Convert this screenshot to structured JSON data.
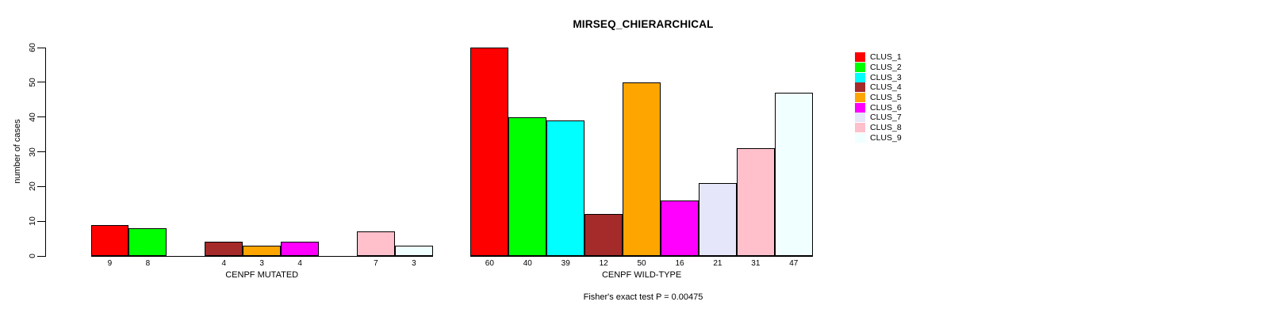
{
  "figure": {
    "title": "MIRSEQ_CHIERARCHICAL",
    "caption": "Fisher's exact test P = 0.00475"
  },
  "chart_data": {
    "type": "bar",
    "title": "MIRSEQ_CHIERARCHICAL",
    "xlabel": "",
    "ylabel": "number of cases",
    "ylim": [
      0,
      60
    ],
    "yticks": [
      0,
      10,
      20,
      30,
      40,
      50,
      60
    ],
    "grid": false,
    "bar_value_labels": true,
    "legend_position": "right",
    "annotation": "Fisher's exact test P = 0.00475",
    "categories": [
      "CENPF MUTATED",
      "CENPF WILD-TYPE"
    ],
    "series": [
      {
        "name": "CLUS_1",
        "color": "#FF0000",
        "values": [
          9,
          60
        ]
      },
      {
        "name": "CLUS_2",
        "color": "#00FF00",
        "values": [
          8,
          40
        ]
      },
      {
        "name": "CLUS_3",
        "color": "#00FFFF",
        "values": [
          0,
          39
        ]
      },
      {
        "name": "CLUS_4",
        "color": "#A52A2A",
        "values": [
          4,
          12
        ]
      },
      {
        "name": "CLUS_5",
        "color": "#FFA500",
        "values": [
          3,
          50
        ]
      },
      {
        "name": "CLUS_6",
        "color": "#FF00FF",
        "values": [
          4,
          16
        ]
      },
      {
        "name": "CLUS_7",
        "color": "#E6E6FA",
        "values": [
          0,
          21
        ]
      },
      {
        "name": "CLUS_8",
        "color": "#FFC0CB",
        "values": [
          7,
          31
        ]
      },
      {
        "name": "CLUS_9",
        "color": "#F0FFFF",
        "values": [
          3,
          47
        ]
      }
    ]
  }
}
